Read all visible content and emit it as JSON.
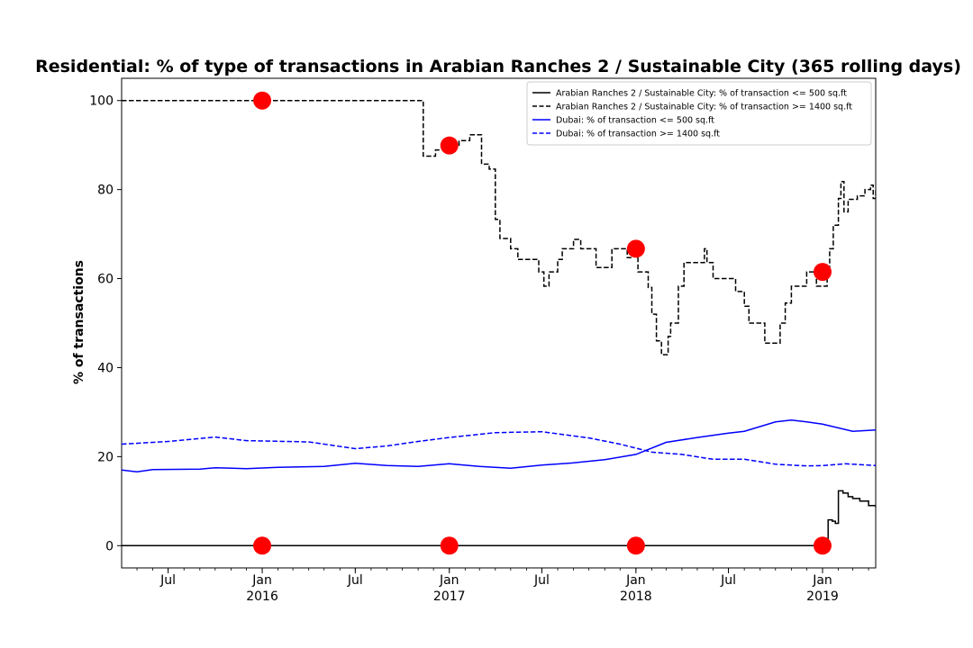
{
  "chart_data": {
    "type": "line",
    "title": "Residential: % of type of transactions in Arabian Ranches 2 / Sustainable City (365 rolling days)",
    "xlabel": "",
    "ylabel": "% of transactions",
    "xlim": [
      "2015-04-01",
      "2019-04-15"
    ],
    "ylim": [
      -5,
      105
    ],
    "yticks": [
      0,
      20,
      40,
      60,
      80,
      100
    ],
    "ytick_labels": [
      "0",
      "20",
      "40",
      "60",
      "80",
      "100"
    ],
    "xticks": [
      {
        "date": "2015-07-01",
        "label": "Jul"
      },
      {
        "date": "2016-01-01",
        "label": "Jan",
        "sub": "2016"
      },
      {
        "date": "2016-07-01",
        "label": "Jul"
      },
      {
        "date": "2017-01-01",
        "label": "Jan",
        "sub": "2017"
      },
      {
        "date": "2017-07-01",
        "label": "Jul"
      },
      {
        "date": "2018-01-01",
        "label": "Jan",
        "sub": "2018"
      },
      {
        "date": "2018-07-01",
        "label": "Jul"
      },
      {
        "date": "2019-01-01",
        "label": "Jan",
        "sub": "2019"
      }
    ],
    "grid": false,
    "legend_position": "top-right",
    "series": [
      {
        "name": "Arabian Ranches 2 / Sustainable City: % of transaction <= 500 sq.ft",
        "color": "#000000",
        "dash": "solid",
        "step": true,
        "points": [
          [
            "2015-04-01",
            0
          ],
          [
            "2019-01-10",
            0
          ],
          [
            "2019-01-12",
            5.8
          ],
          [
            "2019-01-20",
            5.5
          ],
          [
            "2019-01-26",
            5.0
          ],
          [
            "2019-02-01",
            12.3
          ],
          [
            "2019-02-10",
            11.8
          ],
          [
            "2019-02-20",
            11.0
          ],
          [
            "2019-03-01",
            10.6
          ],
          [
            "2019-03-15",
            10.0
          ],
          [
            "2019-04-01",
            9.0
          ],
          [
            "2019-04-15",
            8.6
          ]
        ]
      },
      {
        "name": "Arabian Ranches 2 / Sustainable City: % of transaction >= 1400 sq.ft",
        "color": "#000000",
        "dash": "dashed",
        "step": true,
        "points": [
          [
            "2015-04-01",
            100
          ],
          [
            "2016-11-10",
            100
          ],
          [
            "2016-11-11",
            87.5
          ],
          [
            "2016-12-05",
            88.9
          ],
          [
            "2016-12-20",
            90.0
          ],
          [
            "2017-01-20",
            91.0
          ],
          [
            "2017-02-10",
            92.3
          ],
          [
            "2017-03-05",
            85.7
          ],
          [
            "2017-03-20",
            84.6
          ],
          [
            "2017-04-01",
            73.3
          ],
          [
            "2017-04-10",
            69.0
          ],
          [
            "2017-05-01",
            66.7
          ],
          [
            "2017-05-15",
            64.3
          ],
          [
            "2017-06-25",
            61.5
          ],
          [
            "2017-07-05",
            58.3
          ],
          [
            "2017-07-15",
            61.5
          ],
          [
            "2017-08-01",
            64.3
          ],
          [
            "2017-08-10",
            66.7
          ],
          [
            "2017-09-01",
            68.8
          ],
          [
            "2017-09-15",
            66.7
          ],
          [
            "2017-10-15",
            62.5
          ],
          [
            "2017-11-15",
            66.7
          ],
          [
            "2017-12-15",
            64.7
          ],
          [
            "2017-12-25",
            66.7
          ],
          [
            "2018-01-05",
            61.5
          ],
          [
            "2018-01-25",
            58.0
          ],
          [
            "2018-02-01",
            52.0
          ],
          [
            "2018-02-10",
            46.0
          ],
          [
            "2018-02-20",
            42.9
          ],
          [
            "2018-03-05",
            47.0
          ],
          [
            "2018-03-10",
            50.0
          ],
          [
            "2018-03-25",
            58.3
          ],
          [
            "2018-04-05",
            63.6
          ],
          [
            "2018-05-15",
            66.7
          ],
          [
            "2018-05-20",
            63.6
          ],
          [
            "2018-06-01",
            60.0
          ],
          [
            "2018-07-15",
            57.1
          ],
          [
            "2018-08-01",
            53.8
          ],
          [
            "2018-08-10",
            50.0
          ],
          [
            "2018-09-10",
            45.5
          ],
          [
            "2018-10-10",
            50.0
          ],
          [
            "2018-10-20",
            54.5
          ],
          [
            "2018-11-01",
            58.3
          ],
          [
            "2018-12-01",
            61.5
          ],
          [
            "2018-12-20",
            58.3
          ],
          [
            "2019-01-10",
            61.5
          ],
          [
            "2019-01-15",
            66.7
          ],
          [
            "2019-01-22",
            72.0
          ],
          [
            "2019-02-01",
            78.0
          ],
          [
            "2019-02-06",
            81.8
          ],
          [
            "2019-02-12",
            75.0
          ],
          [
            "2019-02-20",
            77.8
          ],
          [
            "2019-03-10",
            78.6
          ],
          [
            "2019-03-25",
            80.0
          ],
          [
            "2019-04-05",
            81.0
          ],
          [
            "2019-04-10",
            78.0
          ],
          [
            "2019-04-15",
            80.0
          ]
        ]
      },
      {
        "name": "Dubai: % of transaction <= 500 sq.ft",
        "color": "#0000ff",
        "dash": "solid",
        "step": false,
        "points": [
          [
            "2015-04-01",
            17.0
          ],
          [
            "2015-05-01",
            16.6
          ],
          [
            "2015-06-01",
            17.1
          ],
          [
            "2015-09-01",
            17.2
          ],
          [
            "2015-10-01",
            17.5
          ],
          [
            "2015-12-01",
            17.3
          ],
          [
            "2016-02-01",
            17.6
          ],
          [
            "2016-05-01",
            17.8
          ],
          [
            "2016-07-01",
            18.5
          ],
          [
            "2016-09-01",
            18.0
          ],
          [
            "2016-11-01",
            17.8
          ],
          [
            "2017-01-01",
            18.4
          ],
          [
            "2017-03-01",
            17.8
          ],
          [
            "2017-05-01",
            17.4
          ],
          [
            "2017-07-01",
            18.1
          ],
          [
            "2017-09-01",
            18.6
          ],
          [
            "2017-11-01",
            19.3
          ],
          [
            "2018-01-01",
            20.5
          ],
          [
            "2018-03-01",
            23.2
          ],
          [
            "2018-05-01",
            24.3
          ],
          [
            "2018-07-01",
            25.3
          ],
          [
            "2018-08-01",
            25.7
          ],
          [
            "2018-10-01",
            27.8
          ],
          [
            "2018-11-01",
            28.2
          ],
          [
            "2018-12-01",
            27.8
          ],
          [
            "2019-01-01",
            27.3
          ],
          [
            "2019-03-01",
            25.7
          ],
          [
            "2019-04-15",
            26.0
          ]
        ]
      },
      {
        "name": "Dubai: % of transaction >= 1400 sq.ft",
        "color": "#0000ff",
        "dash": "dashed",
        "step": false,
        "points": [
          [
            "2015-04-01",
            22.8
          ],
          [
            "2015-07-01",
            23.4
          ],
          [
            "2015-10-01",
            24.4
          ],
          [
            "2015-12-01",
            23.6
          ],
          [
            "2016-04-01",
            23.3
          ],
          [
            "2016-07-01",
            21.8
          ],
          [
            "2016-09-01",
            22.4
          ],
          [
            "2016-11-01",
            23.4
          ],
          [
            "2017-01-01",
            24.3
          ],
          [
            "2017-04-01",
            25.4
          ],
          [
            "2017-07-01",
            25.6
          ],
          [
            "2017-10-01",
            24.2
          ],
          [
            "2017-12-01",
            22.8
          ],
          [
            "2018-02-01",
            21.0
          ],
          [
            "2018-04-01",
            20.5
          ],
          [
            "2018-06-01",
            19.4
          ],
          [
            "2018-08-01",
            19.4
          ],
          [
            "2018-10-01",
            18.3
          ],
          [
            "2018-12-01",
            17.9
          ],
          [
            "2019-01-01",
            18.0
          ],
          [
            "2019-02-15",
            18.4
          ],
          [
            "2019-04-15",
            18.0
          ]
        ]
      }
    ],
    "markers": {
      "color": "#ff0000",
      "points": [
        [
          "2016-01-01",
          100
        ],
        [
          "2017-01-01",
          89.9
        ],
        [
          "2018-01-01",
          66.7
        ],
        [
          "2019-01-01",
          61.5
        ],
        [
          "2016-01-01",
          0
        ],
        [
          "2017-01-01",
          0
        ],
        [
          "2018-01-01",
          0
        ],
        [
          "2019-01-01",
          0
        ]
      ]
    }
  }
}
